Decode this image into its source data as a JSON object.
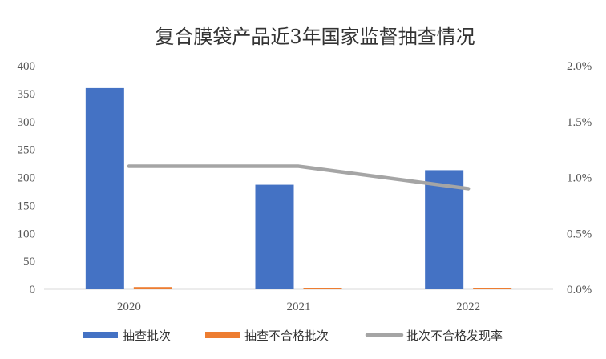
{
  "chart_data": {
    "type": "bar",
    "title": "复合膜袋产品近3年国家监督抽查情况",
    "categories": [
      "2020",
      "2021",
      "2022"
    ],
    "series": [
      {
        "name": "抽查批次",
        "type": "bar",
        "axis": "left",
        "color": "#4472C4",
        "values": [
          360,
          187,
          213
        ]
      },
      {
        "name": "抽查不合格批次",
        "type": "bar",
        "axis": "left",
        "color": "#ED7D31",
        "values": [
          4,
          2,
          2
        ]
      },
      {
        "name": "批次不合格发现率",
        "type": "line",
        "axis": "right",
        "color": "#A5A5A5",
        "values": [
          1.1,
          1.1,
          0.9
        ],
        "unit": "%"
      }
    ],
    "y_left": {
      "min": 0,
      "max": 400,
      "step": 50,
      "ticks": [
        "0",
        "50",
        "100",
        "150",
        "200",
        "250",
        "300",
        "350",
        "400"
      ]
    },
    "y_right": {
      "min": 0,
      "max": 2.0,
      "step": 0.5,
      "ticks": [
        "0.0%",
        "0.5%",
        "1.0%",
        "1.5%",
        "2.0%"
      ]
    },
    "grid": false,
    "legend_position": "bottom"
  }
}
